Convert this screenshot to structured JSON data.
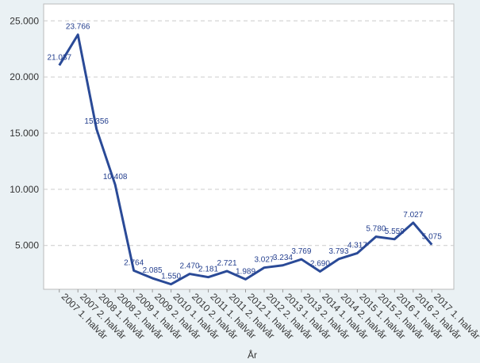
{
  "chart_data": {
    "type": "line",
    "x_label": "År",
    "categories": [
      "2007 1. halvår",
      "2007 2. halvår",
      "2008 1. halvår",
      "2008 2. halvår",
      "2009 1. halvår",
      "2009 2. halvår",
      "2010 1. halvår",
      "2010 2. halvår",
      "2011 1. halvår",
      "2011 2. halvår",
      "2012 1. halvår",
      "2012 2. halvår",
      "2013 1. halvår",
      "2013 2. halvår",
      "2014 1. halvår",
      "2014 2. halvår",
      "2015 1. halvår",
      "2015 2. halvår",
      "2016 1. halvår",
      "2016 2. halvår",
      "2017 1. halvår"
    ],
    "series": [
      {
        "color": "#2a4a97",
        "values": [
          21037,
          23766,
          15356,
          10408,
          2764,
          2085,
          1550,
          2470,
          2181,
          2721,
          1989,
          3027,
          3234,
          3769,
          2690,
          3793,
          4317,
          5780,
          5559,
          7027,
          5075
        ],
        "value_labels": [
          "21.037",
          "23.766",
          "15.356",
          "10.408",
          "2.764",
          "2.085",
          "1.550",
          "2.470",
          "2.181",
          "2.721",
          "1.989",
          "3.027",
          "3.234",
          "3.769",
          "2.690",
          "3.793",
          "4.317",
          "5.780",
          "5.559",
          "7.027",
          "5.075"
        ]
      }
    ],
    "ylim": [
      1100,
      26500
    ],
    "yticks": [
      {
        "value": 5000,
        "label": "5.000"
      },
      {
        "value": 10000,
        "label": "10.000"
      },
      {
        "value": 15000,
        "label": "15.000"
      },
      {
        "value": 20000,
        "label": "20.000"
      },
      {
        "value": 25000,
        "label": "25.000"
      }
    ],
    "grid": true
  }
}
